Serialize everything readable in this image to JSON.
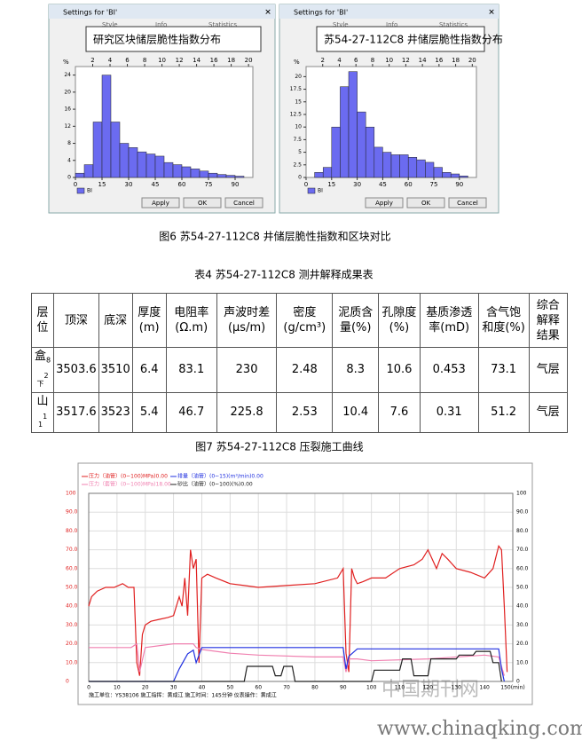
{
  "figure6": {
    "caption": "图6 苏54-27-112C8 井储层脆性指数和区块对比",
    "panels": [
      {
        "window_title": "Settings for 'BI'",
        "tabs": [
          "Style",
          "Info",
          "Statistics"
        ],
        "title": "研究区块储层脆性指数分布",
        "bins": [
          0,
          5,
          10,
          15,
          20,
          25,
          30,
          35,
          40,
          45,
          50,
          55,
          60,
          65,
          70,
          75,
          80,
          85,
          90,
          95
        ],
        "counts": [
          1,
          3,
          13,
          24,
          13,
          8,
          7,
          6,
          5.5,
          5,
          3.5,
          3,
          2.5,
          2,
          1.5,
          1,
          0.7,
          0.5,
          0.3
        ],
        "xlim": [
          0,
          100
        ],
        "xticks": [
          0,
          15,
          30,
          45,
          60,
          75,
          90
        ],
        "ylim": [
          0,
          26
        ],
        "yticks": [
          0,
          4,
          8,
          12,
          16,
          20,
          24
        ],
        "x2lim": [
          0,
          20.5
        ],
        "x2ticks": [
          2,
          4,
          6,
          8,
          10,
          12,
          14,
          16,
          18,
          20
        ],
        "color": "#6b6bf0",
        "legend": "BI",
        "y_label": "%",
        "buttons": [
          "Apply",
          "OK",
          "Cancel"
        ]
      },
      {
        "window_title": "Settings for 'BI'",
        "tabs": [
          "Style",
          "Info",
          "Statistics"
        ],
        "title": "苏54-27-112C8 井储层脆性指数分布",
        "bins": [
          5,
          10,
          15,
          20,
          25,
          30,
          35,
          40,
          45,
          50,
          55,
          60,
          65,
          70,
          75,
          80,
          85,
          90,
          95
        ],
        "counts": [
          1,
          2,
          10,
          18,
          21,
          13,
          10,
          6,
          5,
          4.5,
          4.5,
          4,
          3.5,
          3,
          2,
          1,
          0.7,
          0.3
        ],
        "xlim": [
          0,
          100
        ],
        "xticks": [
          0,
          15,
          30,
          45,
          60,
          75,
          90
        ],
        "ylim": [
          0,
          22
        ],
        "yticks": [
          0,
          2.5,
          5,
          7.5,
          10,
          12.5,
          15,
          17.5,
          20
        ],
        "x2lim": [
          0,
          20.5
        ],
        "x2ticks": [
          2,
          4,
          6,
          8,
          10,
          12,
          14,
          16,
          18,
          20
        ],
        "color": "#6b6bf0",
        "legend": "BI",
        "y_label": "%",
        "buttons": [
          "Apply",
          "OK",
          "Cancel"
        ]
      }
    ]
  },
  "table4": {
    "caption": "表4 苏54-27-112C8 测井解释成果表",
    "header": [
      "层位",
      "顶深",
      "底深",
      "厚度(m)",
      "电阻率(Ω.m)",
      "声波时差(μs/m)",
      "密度(g/cm³)",
      "泥质含量(%)",
      "孔隙度(%)",
      "基质渗透率(mD)",
      "含气饱和度(%)",
      "综合解释结果"
    ],
    "rows": [
      [
        {
          "name": "盒",
          "sub": "8下",
          "sup": "2"
        },
        3503.6,
        3510,
        6.4,
        83.1,
        230,
        2.48,
        8.3,
        10.6,
        0.453,
        73.1,
        "气层"
      ],
      [
        {
          "name": "山",
          "sub": "1",
          "sup": "1"
        },
        3517.6,
        3523,
        5.4,
        46.7,
        225.8,
        2.53,
        10.4,
        7.6,
        0.31,
        51.2,
        "气层"
      ]
    ]
  },
  "figure7": {
    "caption": "图7 苏54-27-112C8 压裂施工曲线",
    "chart": {
      "type": "line",
      "xlim": [
        0,
        150
      ],
      "xticks": [
        0,
        10,
        20,
        30,
        40,
        50,
        60,
        70,
        80,
        90,
        100,
        110,
        120,
        130,
        140,
        {
          "value": 150,
          "label": "150(min)"
        }
      ],
      "ylim": [
        0,
        100
      ],
      "yticks": [
        0,
        {
          "value": 10,
          "label": "10.0"
        },
        {
          "value": 20,
          "label": "20.0"
        },
        {
          "value": 30,
          "label": "30.0"
        },
        {
          "value": 40,
          "label": "40.0"
        },
        {
          "value": 50,
          "label": "50.0"
        },
        {
          "value": 60,
          "label": "60.0"
        },
        {
          "value": 70,
          "label": "70.0"
        },
        {
          "value": 80,
          "label": "80.0"
        },
        {
          "value": 90,
          "label": "90.0"
        },
        100
      ],
      "grid": true,
      "series": [
        {
          "name": "压力（油管）(0~100)MPa)0.00",
          "color": "#e02020",
          "ylim": [
            0,
            100
          ],
          "x": [
            0,
            1,
            3,
            6,
            9,
            12,
            14,
            16,
            17,
            18,
            19,
            20,
            22,
            25,
            28,
            30,
            32,
            33,
            34,
            35,
            36,
            37,
            38,
            39,
            40,
            42,
            45,
            50,
            55,
            60,
            70,
            80,
            88,
            90,
            91,
            92,
            93,
            94,
            95,
            97,
            100,
            105,
            110,
            115,
            118,
            120,
            123,
            125,
            127,
            130,
            135,
            140,
            143,
            145,
            146,
            147,
            148
          ],
          "values": [
            40,
            45,
            48,
            50,
            50,
            52,
            50,
            50,
            10,
            3,
            25,
            30,
            32,
            33,
            34,
            35,
            45,
            40,
            55,
            35,
            70,
            60,
            65,
            10,
            55,
            57,
            55,
            52,
            51,
            50,
            51,
            52,
            55,
            60,
            15,
            5,
            60,
            55,
            52,
            53,
            55,
            55,
            60,
            62,
            65,
            70,
            60,
            68,
            65,
            60,
            58,
            55,
            60,
            72,
            70,
            40,
            5
          ]
        },
        {
          "name": "压力（套管）(0~100)MPa)18.00",
          "color": "#f080b0",
          "ylim": [
            0,
            100
          ],
          "x": [
            0,
            15,
            17,
            18,
            20,
            30,
            37,
            38,
            40,
            50,
            60,
            80,
            90,
            91,
            92,
            95,
            100,
            120,
            140,
            145,
            147
          ],
          "values": [
            18,
            18,
            20,
            5,
            18,
            20,
            20,
            18,
            17,
            15,
            14,
            13,
            13,
            5,
            12,
            12,
            11,
            12,
            14,
            13,
            3
          ]
        },
        {
          "name": "排量（油管）(0~15)(m³/min)0.00",
          "color": "#2030e0",
          "ylim": [
            0,
            15
          ],
          "x": [
            0,
            30,
            32,
            35,
            37,
            38,
            40,
            90,
            91,
            92,
            95,
            145,
            146,
            147
          ],
          "values": [
            0,
            0,
            1,
            2.2,
            2.5,
            1.5,
            2.7,
            2.7,
            1,
            2,
            2.6,
            2.6,
            1,
            0
          ]
        },
        {
          "name": "砂比（油管）(0~100)(%)0.00",
          "color": "#202020",
          "ylim": [
            0,
            100
          ],
          "x": [
            0,
            55,
            56,
            65,
            66,
            68,
            69,
            72,
            73,
            90,
            100,
            101,
            110,
            111,
            114,
            115,
            120,
            121,
            130,
            131,
            136,
            137,
            142,
            143,
            145,
            146
          ],
          "values": [
            0,
            0,
            8,
            8,
            3,
            3,
            8,
            8,
            0,
            0,
            0,
            6,
            6,
            12,
            12,
            3,
            3,
            12,
            12,
            14,
            14,
            16,
            16,
            10,
            10,
            0
          ]
        }
      ]
    },
    "footer": "施工单位：YS38106 施工指挥：黄成江 施工时间：145分钟 仪表操作：黄成江"
  },
  "watermark": [
    "中国期刊网",
    "www.chinaqking.com"
  ]
}
